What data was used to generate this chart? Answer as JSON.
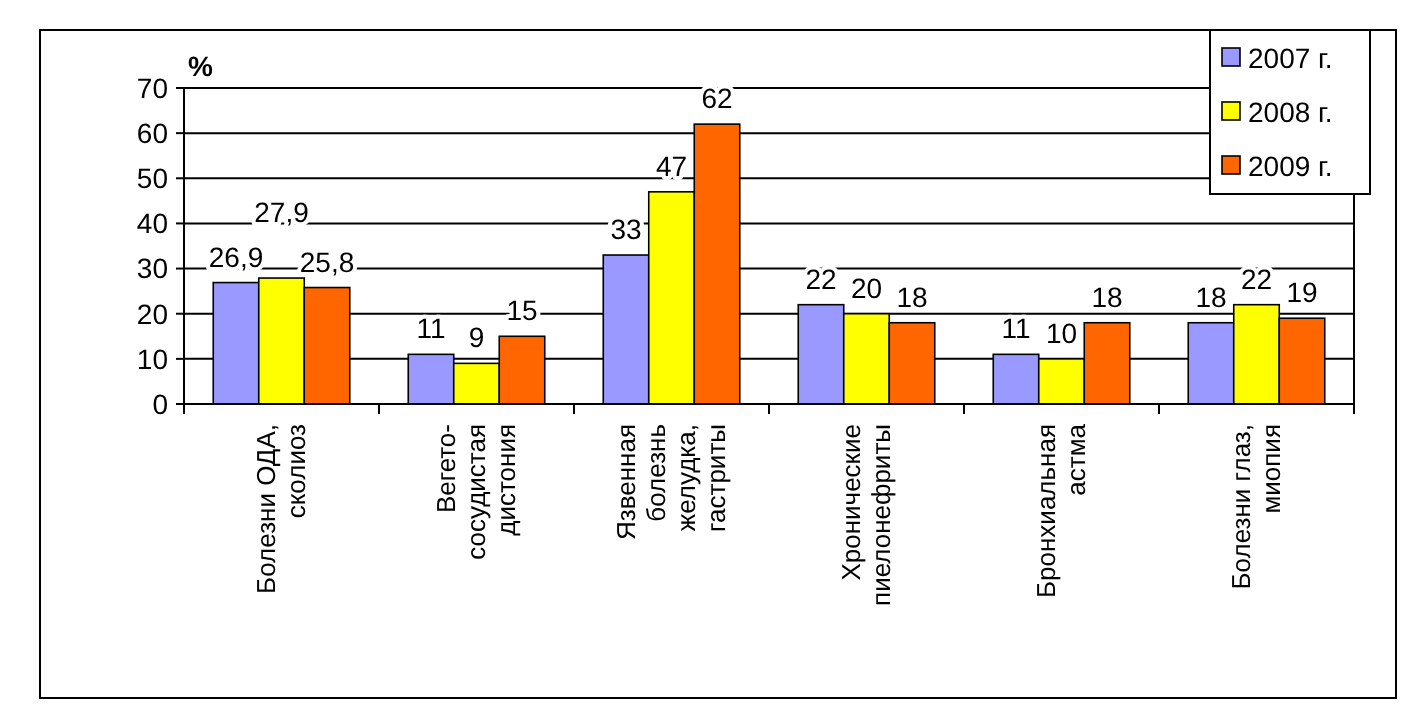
{
  "chart_data": {
    "type": "bar",
    "ylabel": "%",
    "categories": [
      "Болезни ОДА,\nсколиоз",
      "Вегето-\nсосудистая\nдистония",
      "Язвенная\nболезнь\nжелудка,\nгастриты",
      "Хронические\nпиелонефриты",
      "Бронхиальная\nастма",
      "Болезни глаз,\nмиопия"
    ],
    "series": [
      {
        "name": "2007 г.",
        "color": "#9999ff",
        "values": [
          26.9,
          11,
          33,
          22,
          11,
          18
        ],
        "value_labels": [
          "26,9",
          "11",
          "33",
          "22",
          "11",
          "18"
        ]
      },
      {
        "name": "2008 г.",
        "color": "#ffff00",
        "values": [
          27.9,
          9,
          47,
          20,
          10,
          22
        ],
        "value_labels": [
          "27,9",
          "9",
          "47",
          "20",
          "10",
          "22"
        ]
      },
      {
        "name": "2009 г.",
        "color": "#ff6600",
        "values": [
          25.8,
          15,
          62,
          18,
          18,
          19
        ],
        "value_labels": [
          "25,8",
          "15",
          "62",
          "18",
          "18",
          "19"
        ]
      }
    ],
    "ylim": [
      0,
      70
    ],
    "yticks": [
      0,
      10,
      20,
      30,
      40,
      50,
      60,
      70
    ],
    "grid": "y",
    "legend": "top right"
  }
}
